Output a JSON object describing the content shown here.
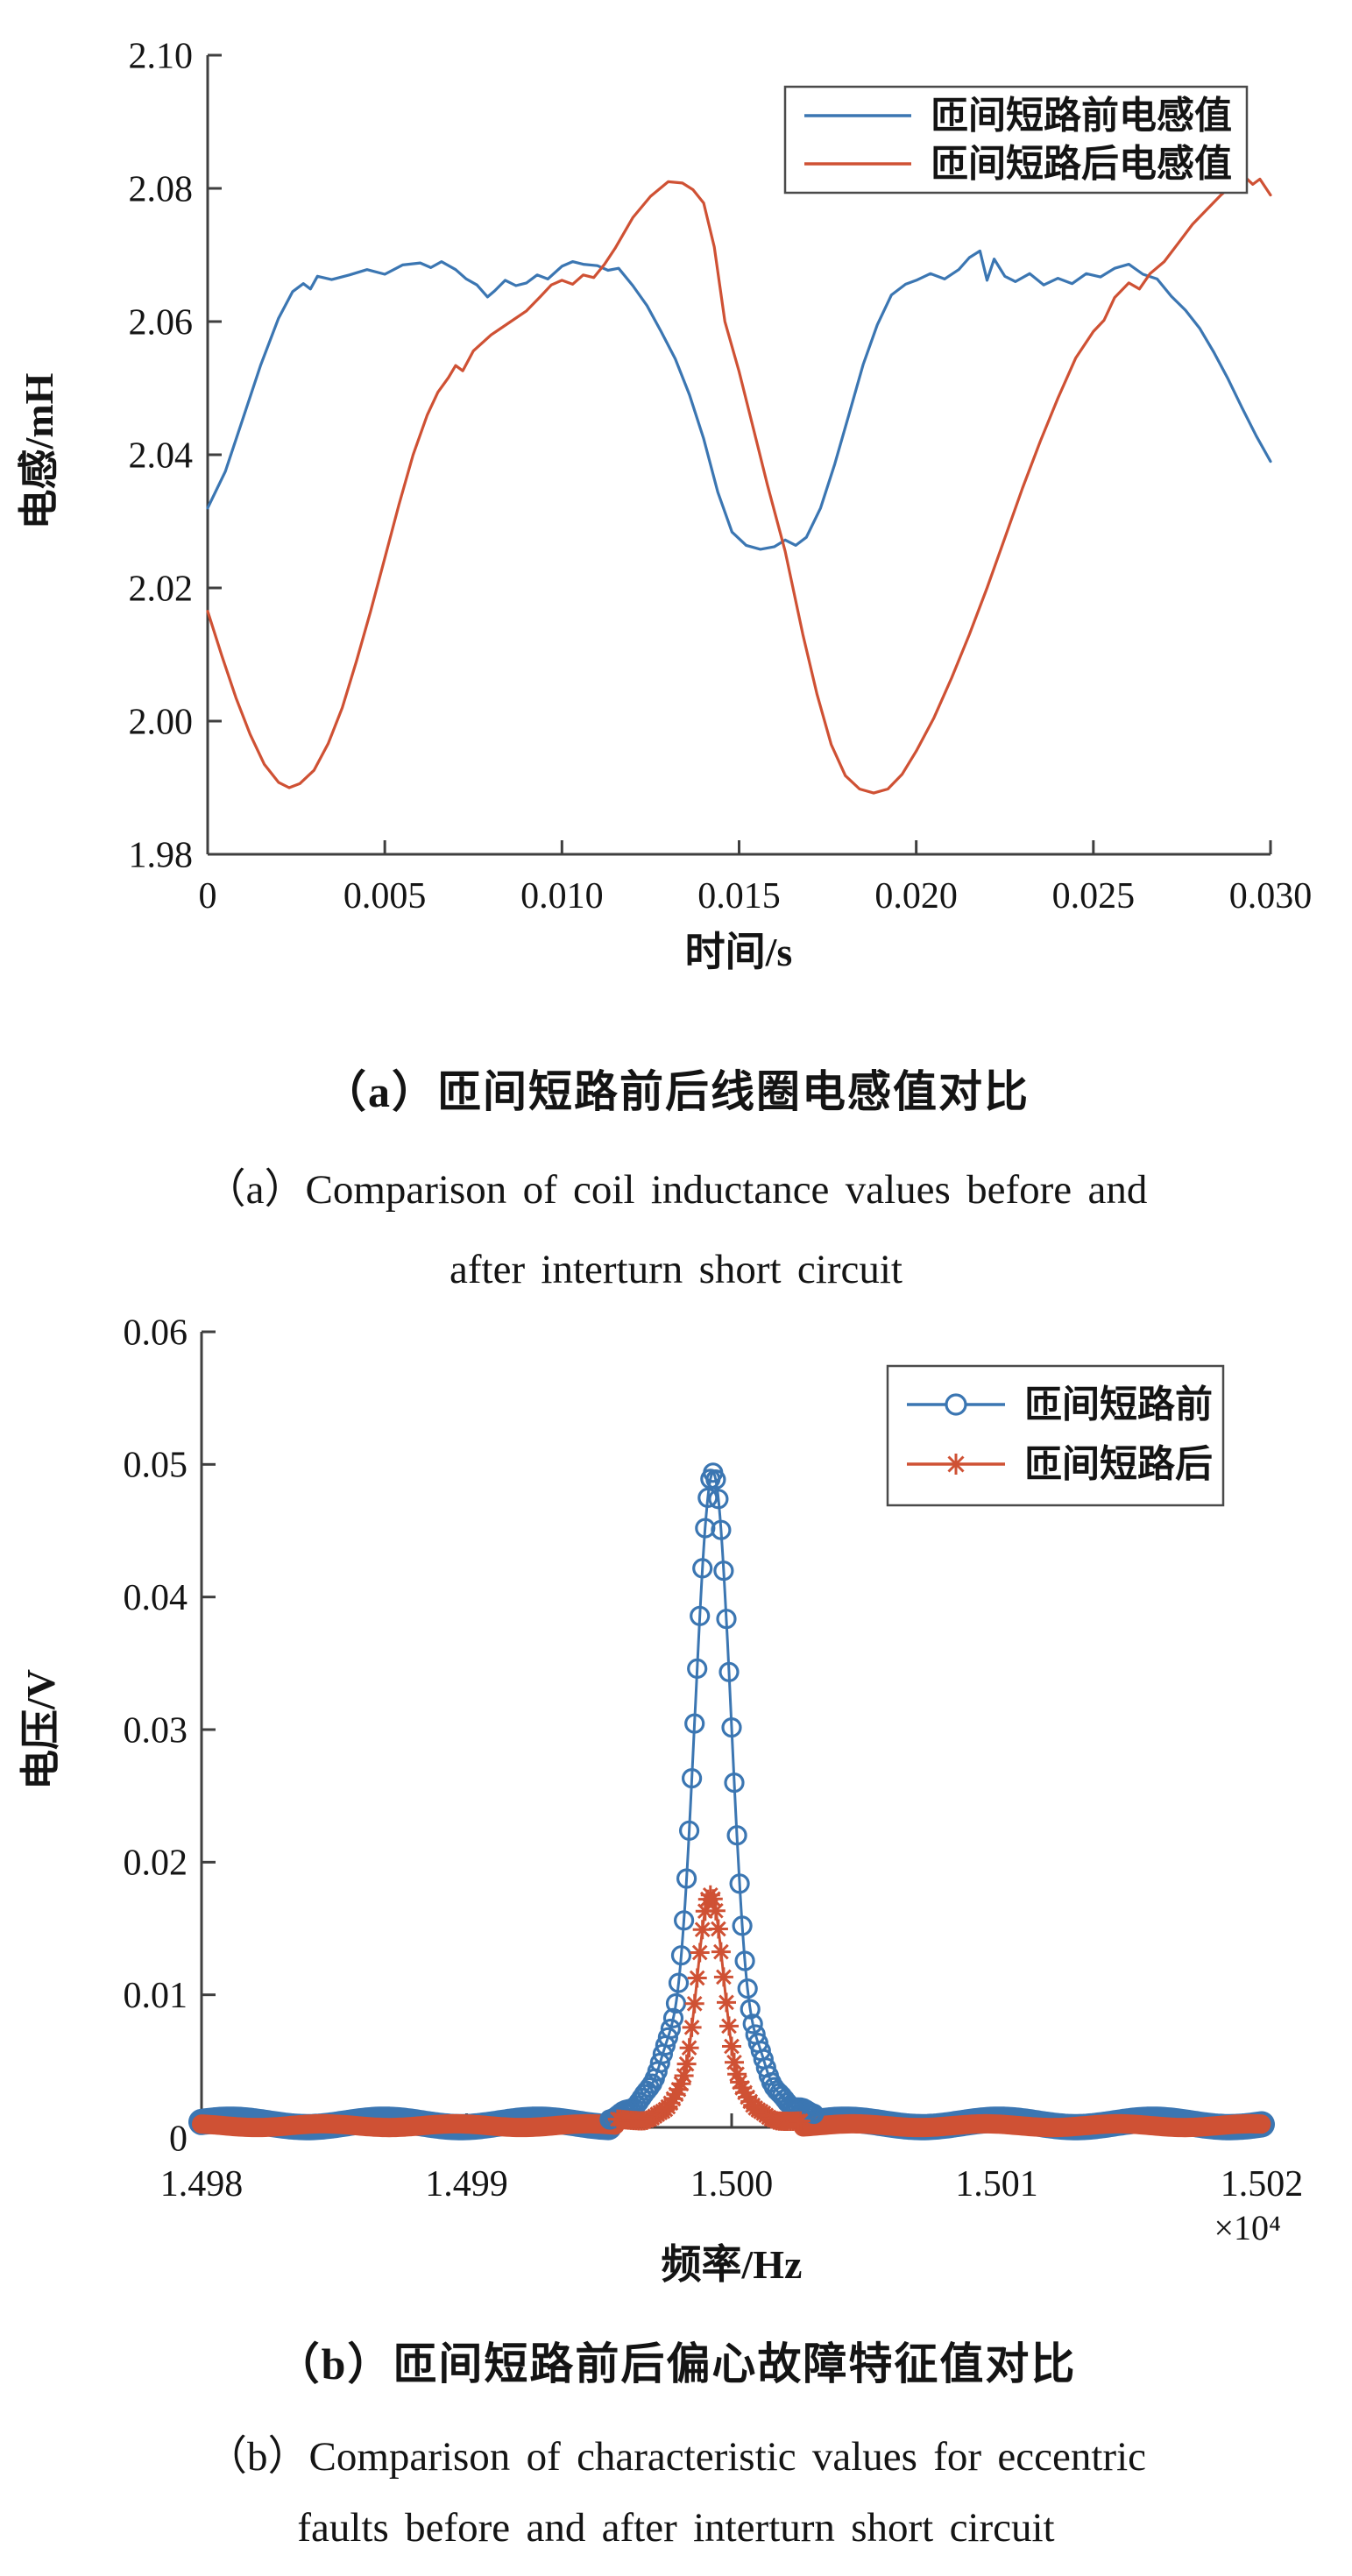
{
  "figure": {
    "captions": {
      "a_cn": "（a）匝间短路前后线圈电感值对比",
      "a_en_line1": "（a）Comparison of coil inductance values before and",
      "a_en_line2": "after interturn short circuit",
      "b_cn": "（b）匝间短路前后偏心故障特征值对比",
      "b_en_line1": "（b）Comparison of characteristic values for eccentric",
      "b_en_line2": "faults before and after interturn short circuit"
    },
    "colors": {
      "blue": "#3b76b2",
      "red": "#cf5134",
      "axis": "#3f3f3f",
      "text": "#141414",
      "legend_border": "#4a4a4a",
      "legend_fill": "#ffffff"
    }
  },
  "chart_data": [
    {
      "id": "coil-inductance-comparison",
      "type": "line",
      "title": "",
      "xlabel": "时间/s",
      "ylabel": "电感/mH",
      "xlim": [
        0,
        0.03
      ],
      "ylim": [
        1.98,
        2.1
      ],
      "xtick_values": [
        0,
        0.005,
        0.01,
        0.015,
        0.02,
        0.025,
        0.03
      ],
      "xtick_labels": [
        "0",
        "0.005",
        "0.010",
        "0.015",
        "0.020",
        "0.025",
        "0.030"
      ],
      "ytick_values": [
        1.98,
        2.0,
        2.02,
        2.04,
        2.06,
        2.08,
        2.1
      ],
      "ytick_labels": [
        "1.98",
        "2.00",
        "2.02",
        "2.04",
        "2.06",
        "2.08",
        "2.10"
      ],
      "grid": false,
      "legend_position": "top-right",
      "series": [
        {
          "name": "匝间短路前电感值",
          "color_key": "blue",
          "marker": "none",
          "points": [
            [
              0.0,
              2.032
            ],
            [
              0.0005,
              2.0375
            ],
            [
              0.001,
              2.0455
            ],
            [
              0.0015,
              2.0535
            ],
            [
              0.002,
              2.0605
            ],
            [
              0.0024,
              2.0645
            ],
            [
              0.0027,
              2.0657
            ],
            [
              0.0029,
              2.0649
            ],
            [
              0.0031,
              2.0668
            ],
            [
              0.0035,
              2.0663
            ],
            [
              0.004,
              2.067
            ],
            [
              0.0045,
              2.0678
            ],
            [
              0.005,
              2.0671
            ],
            [
              0.0055,
              2.0685
            ],
            [
              0.006,
              2.0688
            ],
            [
              0.0063,
              2.0681
            ],
            [
              0.0066,
              2.069
            ],
            [
              0.007,
              2.0678
            ],
            [
              0.0073,
              2.0664
            ],
            [
              0.0076,
              2.0655
            ],
            [
              0.0079,
              2.0637
            ],
            [
              0.0081,
              2.0646
            ],
            [
              0.0084,
              2.0662
            ],
            [
              0.0087,
              2.0654
            ],
            [
              0.009,
              2.0658
            ],
            [
              0.0093,
              2.067
            ],
            [
              0.0096,
              2.0664
            ],
            [
              0.01,
              2.0683
            ],
            [
              0.0103,
              2.069
            ],
            [
              0.0106,
              2.0686
            ],
            [
              0.011,
              2.0684
            ],
            [
              0.0113,
              2.0677
            ],
            [
              0.0116,
              2.068
            ],
            [
              0.012,
              2.0654
            ],
            [
              0.0124,
              2.0624
            ],
            [
              0.0128,
              2.0585
            ],
            [
              0.0132,
              2.0544
            ],
            [
              0.0136,
              2.049
            ],
            [
              0.014,
              2.0424
            ],
            [
              0.0144,
              2.0344
            ],
            [
              0.0148,
              2.0284
            ],
            [
              0.0152,
              2.0264
            ],
            [
              0.0156,
              2.0258
            ],
            [
              0.016,
              2.0262
            ],
            [
              0.0163,
              2.0272
            ],
            [
              0.0166,
              2.0264
            ],
            [
              0.0169,
              2.0276
            ],
            [
              0.0173,
              2.032
            ],
            [
              0.0177,
              2.0386
            ],
            [
              0.0181,
              2.046
            ],
            [
              0.0185,
              2.0535
            ],
            [
              0.0189,
              2.0595
            ],
            [
              0.0193,
              2.064
            ],
            [
              0.0197,
              2.0656
            ],
            [
              0.02,
              2.0662
            ],
            [
              0.0204,
              2.0672
            ],
            [
              0.0208,
              2.0664
            ],
            [
              0.0212,
              2.0678
            ],
            [
              0.0215,
              2.0696
            ],
            [
              0.0218,
              2.0706
            ],
            [
              0.022,
              2.0662
            ],
            [
              0.0222,
              2.0694
            ],
            [
              0.0225,
              2.0668
            ],
            [
              0.0228,
              2.066
            ],
            [
              0.0232,
              2.0672
            ],
            [
              0.0236,
              2.0655
            ],
            [
              0.024,
              2.0665
            ],
            [
              0.0244,
              2.0657
            ],
            [
              0.0248,
              2.0672
            ],
            [
              0.0252,
              2.0667
            ],
            [
              0.0256,
              2.068
            ],
            [
              0.026,
              2.0686
            ],
            [
              0.0264,
              2.0671
            ],
            [
              0.0268,
              2.0664
            ],
            [
              0.0272,
              2.0638
            ],
            [
              0.0276,
              2.0617
            ],
            [
              0.028,
              2.059
            ],
            [
              0.0284,
              2.0554
            ],
            [
              0.0288,
              2.0514
            ],
            [
              0.0292,
              2.047
            ],
            [
              0.0296,
              2.0428
            ],
            [
              0.03,
              2.039
            ]
          ]
        },
        {
          "name": "匝间短路后电感值",
          "color_key": "red",
          "marker": "none",
          "points": [
            [
              0.0,
              2.0165
            ],
            [
              0.0004,
              2.0098
            ],
            [
              0.0008,
              2.0035
            ],
            [
              0.0012,
              1.998
            ],
            [
              0.0016,
              1.9935
            ],
            [
              0.002,
              1.9908
            ],
            [
              0.0023,
              1.99
            ],
            [
              0.0026,
              1.9906
            ],
            [
              0.003,
              1.9926
            ],
            [
              0.0034,
              1.9966
            ],
            [
              0.0038,
              2.002
            ],
            [
              0.0042,
              2.009
            ],
            [
              0.0046,
              2.0165
            ],
            [
              0.005,
              2.0245
            ],
            [
              0.0054,
              2.0325
            ],
            [
              0.0058,
              2.04
            ],
            [
              0.0062,
              2.046
            ],
            [
              0.0065,
              2.0494
            ],
            [
              0.0068,
              2.0516
            ],
            [
              0.007,
              2.0534
            ],
            [
              0.0072,
              2.0526
            ],
            [
              0.0075,
              2.0556
            ],
            [
              0.008,
              2.058
            ],
            [
              0.0085,
              2.0598
            ],
            [
              0.009,
              2.0616
            ],
            [
              0.0094,
              2.0638
            ],
            [
              0.0097,
              2.0655
            ],
            [
              0.01,
              2.0662
            ],
            [
              0.0103,
              2.0656
            ],
            [
              0.0106,
              2.067
            ],
            [
              0.0109,
              2.0666
            ],
            [
              0.0112,
              2.0686
            ],
            [
              0.0115,
              2.071
            ],
            [
              0.012,
              2.0756
            ],
            [
              0.0125,
              2.0788
            ],
            [
              0.013,
              2.081
            ],
            [
              0.0134,
              2.0808
            ],
            [
              0.0137,
              2.0798
            ],
            [
              0.014,
              2.0778
            ],
            [
              0.0143,
              2.0712
            ],
            [
              0.0146,
              2.06
            ],
            [
              0.015,
              2.0525
            ],
            [
              0.0154,
              2.044
            ],
            [
              0.0158,
              2.0355
            ],
            [
              0.0163,
              2.0255
            ],
            [
              0.0168,
              2.013
            ],
            [
              0.0172,
              2.004
            ],
            [
              0.0176,
              1.9965
            ],
            [
              0.018,
              1.9918
            ],
            [
              0.0184,
              1.9898
            ],
            [
              0.0188,
              1.9892
            ],
            [
              0.0192,
              1.9898
            ],
            [
              0.0196,
              1.992
            ],
            [
              0.02,
              1.9955
            ],
            [
              0.0205,
              2.0005
            ],
            [
              0.021,
              2.0065
            ],
            [
              0.0215,
              2.013
            ],
            [
              0.022,
              2.02
            ],
            [
              0.0225,
              2.0275
            ],
            [
              0.023,
              2.035
            ],
            [
              0.0235,
              2.042
            ],
            [
              0.024,
              2.0485
            ],
            [
              0.0245,
              2.0545
            ],
            [
              0.025,
              2.0585
            ],
            [
              0.0253,
              2.0602
            ],
            [
              0.0256,
              2.0636
            ],
            [
              0.026,
              2.0658
            ],
            [
              0.0263,
              2.0649
            ],
            [
              0.0266,
              2.0672
            ],
            [
              0.027,
              2.069
            ],
            [
              0.0274,
              2.0718
            ],
            [
              0.0278,
              2.0746
            ],
            [
              0.0282,
              2.0768
            ],
            [
              0.0286,
              2.079
            ],
            [
              0.029,
              2.0808
            ],
            [
              0.0293,
              2.0816
            ],
            [
              0.0295,
              2.0806
            ],
            [
              0.0297,
              2.0814
            ],
            [
              0.03,
              2.079
            ]
          ]
        }
      ]
    },
    {
      "id": "eccentric-fault-spectrum-comparison",
      "type": "line",
      "title": "",
      "xlabel": "频率/Hz",
      "ylabel": "电压/V",
      "x_scale_label": "×10⁴",
      "xlim": [
        1.498,
        1.502
      ],
      "ylim": [
        0,
        0.06
      ],
      "xtick_values": [
        1.498,
        1.499,
        1.5,
        1.501,
        1.502
      ],
      "xtick_labels": [
        "1.498",
        "1.499",
        "1.500",
        "1.501",
        "1.502"
      ],
      "ytick_values": [
        0,
        0.01,
        0.02,
        0.03,
        0.04,
        0.05,
        0.06
      ],
      "ytick_labels": [
        "0",
        "0.01",
        "0.02",
        "0.03",
        "0.04",
        "0.05",
        "0.06"
      ],
      "grid": false,
      "legend_position": "top-right",
      "series": [
        {
          "name": "匝间短路前",
          "color_key": "blue",
          "marker": "circle",
          "baseline": 0.0008,
          "band_center": 0.0003,
          "wave_amp": 0.00028,
          "wave_period": 0.00058,
          "peak": {
            "center": 1.49993,
            "height": 0.0484,
            "sigma": 7e-05
          },
          "side_lobes": [
            {
              "offset": 0.00018,
              "height": 0.0034,
              "sigma": 3.5e-05
            },
            {
              "offset": 0.000255,
              "height": 0.0015,
              "sigma": 3e-05
            },
            {
              "offset": 0.00033,
              "height": 0.0007,
              "sigma": 2.8e-05
            }
          ],
          "marker_region_halfwidth": 0.00039
        },
        {
          "name": "匝间短路后",
          "color_key": "red",
          "marker": "asterisk",
          "baseline": 0.0006,
          "band_center": 0.00013,
          "wave_amp": 0.00014,
          "wave_period": 0.0005,
          "peak": {
            "center": 1.49992,
            "height": 0.0168,
            "sigma": 5.2e-05
          },
          "side_lobes": [
            {
              "offset": 0.00013,
              "height": 0.0012,
              "sigma": 2.8e-05
            },
            {
              "offset": 0.00019,
              "height": 0.0005,
              "sigma": 2.5e-05
            }
          ],
          "marker_region_halfwidth": 0.00035
        }
      ]
    }
  ]
}
